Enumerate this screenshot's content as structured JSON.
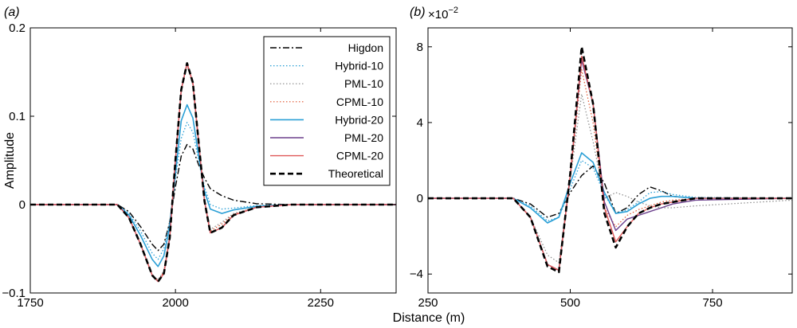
{
  "xlabel": "Distance (m)",
  "chart_data": [
    {
      "type": "line",
      "panel_label": "(a)",
      "ylabel": "Amplitude",
      "xlim": [
        1750,
        2380
      ],
      "ylim": [
        -0.1,
        0.2
      ],
      "xticks": [
        1750,
        2000,
        2250
      ],
      "yticks": [
        -0.1,
        0,
        0.1,
        0.2
      ],
      "ytick_labels": [
        "−0.1",
        "0",
        "0.1",
        "0.2"
      ],
      "grid": false,
      "legend": "top-right",
      "series": [
        {
          "name": "Higdon",
          "color": "#000000",
          "style": "dashdot",
          "width": 1.4,
          "x": [
            1750,
            1900,
            1920,
            1940,
            1960,
            1970,
            1980,
            1990,
            2000,
            2010,
            2020,
            2030,
            2040,
            2050,
            2060,
            2080,
            2100,
            2140,
            2200,
            2380
          ],
          "y": [
            0,
            0,
            -0.008,
            -0.025,
            -0.045,
            -0.052,
            -0.045,
            -0.02,
            0.02,
            0.055,
            0.068,
            0.063,
            0.045,
            0.03,
            0.018,
            0.01,
            0.005,
            0.001,
            0,
            0
          ]
        },
        {
          "name": "Hybrid-10",
          "color": "#2a9fd6",
          "style": "dotted",
          "width": 1.3,
          "x": [
            1750,
            1900,
            1920,
            1940,
            1960,
            1970,
            1980,
            1990,
            2000,
            2010,
            2020,
            2030,
            2040,
            2050,
            2060,
            2080,
            2100,
            2140,
            2200,
            2380
          ],
          "y": [
            0,
            0,
            -0.01,
            -0.03,
            -0.055,
            -0.062,
            -0.05,
            -0.02,
            0.03,
            0.075,
            0.093,
            0.082,
            0.05,
            0.02,
            0,
            -0.005,
            -0.004,
            -0.001,
            0,
            0
          ]
        },
        {
          "name": "PML-10",
          "color": "#8a8a8a",
          "style": "dotted",
          "width": 1.2,
          "x": [
            1750,
            1900,
            1920,
            1940,
            1960,
            1970,
            1980,
            1990,
            2000,
            2010,
            2020,
            2030,
            2040,
            2050,
            2060,
            2080,
            2100,
            2140,
            2200,
            2380
          ],
          "y": [
            0,
            0,
            -0.015,
            -0.045,
            -0.08,
            -0.085,
            -0.075,
            -0.035,
            0.05,
            0.13,
            0.158,
            0.135,
            0.07,
            0.005,
            -0.028,
            -0.02,
            -0.01,
            -0.003,
            0,
            0
          ]
        },
        {
          "name": "CPML-10",
          "color": "#e0542e",
          "style": "dotted",
          "width": 1.2,
          "x": [
            1750,
            1900,
            1920,
            1940,
            1960,
            1970,
            1980,
            1990,
            2000,
            2010,
            2020,
            2030,
            2040,
            2050,
            2060,
            2080,
            2100,
            2140,
            2200,
            2380
          ],
          "y": [
            0,
            0,
            -0.015,
            -0.045,
            -0.08,
            -0.086,
            -0.076,
            -0.036,
            0.05,
            0.13,
            0.159,
            0.136,
            0.07,
            0.004,
            -0.03,
            -0.022,
            -0.011,
            -0.003,
            0,
            0
          ]
        },
        {
          "name": "Hybrid-20",
          "color": "#2a9fd6",
          "style": "solid",
          "width": 1.6,
          "x": [
            1750,
            1900,
            1920,
            1940,
            1960,
            1970,
            1980,
            1990,
            2000,
            2010,
            2020,
            2030,
            2040,
            2050,
            2060,
            2080,
            2100,
            2140,
            2200,
            2380
          ],
          "y": [
            0,
            0,
            -0.012,
            -0.035,
            -0.062,
            -0.07,
            -0.058,
            -0.025,
            0.035,
            0.095,
            0.113,
            0.098,
            0.055,
            0.015,
            -0.005,
            -0.01,
            -0.006,
            -0.002,
            0,
            0
          ]
        },
        {
          "name": "PML-20",
          "color": "#6b3f8c",
          "style": "solid",
          "width": 1.4,
          "x": [
            1750,
            1900,
            1920,
            1940,
            1960,
            1970,
            1980,
            1990,
            2000,
            2010,
            2020,
            2030,
            2040,
            2050,
            2060,
            2080,
            2100,
            2140,
            2200,
            2380
          ],
          "y": [
            0,
            0,
            -0.015,
            -0.045,
            -0.08,
            -0.087,
            -0.078,
            -0.038,
            0.05,
            0.13,
            0.16,
            0.138,
            0.07,
            0.004,
            -0.032,
            -0.026,
            -0.012,
            -0.003,
            0,
            0
          ]
        },
        {
          "name": "CPML-20",
          "color": "#e05858",
          "style": "solid",
          "width": 1.4,
          "x": [
            1750,
            1900,
            1920,
            1940,
            1960,
            1970,
            1980,
            1990,
            2000,
            2010,
            2020,
            2030,
            2040,
            2050,
            2060,
            2080,
            2100,
            2140,
            2200,
            2380
          ],
          "y": [
            0,
            0,
            -0.015,
            -0.045,
            -0.08,
            -0.087,
            -0.078,
            -0.038,
            0.05,
            0.13,
            0.16,
            0.138,
            0.07,
            0.004,
            -0.032,
            -0.026,
            -0.012,
            -0.003,
            0,
            0
          ]
        },
        {
          "name": "Theoretical",
          "color": "#000000",
          "style": "dashed",
          "width": 2.6,
          "x": [
            1750,
            1900,
            1920,
            1940,
            1960,
            1970,
            1980,
            1990,
            2000,
            2010,
            2020,
            2030,
            2040,
            2050,
            2060,
            2080,
            2100,
            2140,
            2200,
            2380
          ],
          "y": [
            0,
            0,
            -0.015,
            -0.045,
            -0.08,
            -0.087,
            -0.078,
            -0.038,
            0.05,
            0.13,
            0.16,
            0.138,
            0.07,
            0.004,
            -0.032,
            -0.026,
            -0.012,
            -0.003,
            0,
            0
          ]
        }
      ]
    },
    {
      "type": "line",
      "panel_label": "(b)",
      "ylabel": "",
      "scale_label": "×10",
      "scale_exponent": "−2",
      "xlim": [
        250,
        890
      ],
      "ylim": [
        -5,
        9
      ],
      "xticks": [
        250,
        500,
        750
      ],
      "yticks": [
        -4,
        0,
        4,
        8
      ],
      "ytick_labels": [
        "−4",
        "0",
        "4",
        "8"
      ],
      "grid": false,
      "series": [
        {
          "name": "Higdon",
          "color": "#000000",
          "style": "dashdot",
          "width": 1.4,
          "x": [
            250,
            400,
            430,
            460,
            480,
            500,
            520,
            540,
            560,
            580,
            600,
            620,
            640,
            660,
            680,
            720,
            890
          ],
          "y": [
            0,
            0,
            -0.3,
            -1,
            -0.8,
            0.3,
            1.2,
            1.7,
            0.8,
            -0.8,
            -0.5,
            0.2,
            0.6,
            0.4,
            0.1,
            0,
            0
          ]
        },
        {
          "name": "Hybrid-10",
          "color": "#2a9fd6",
          "style": "dotted",
          "width": 1.3,
          "x": [
            250,
            400,
            430,
            460,
            480,
            500,
            520,
            540,
            560,
            580,
            600,
            620,
            640,
            660,
            680,
            720,
            890
          ],
          "y": [
            0,
            0,
            -0.4,
            -1.2,
            -1,
            0.5,
            2,
            1.6,
            0.2,
            -0.8,
            -0.6,
            -0.2,
            0.3,
            0.35,
            0.2,
            0.05,
            0
          ]
        },
        {
          "name": "PML-10",
          "color": "#8a8a8a",
          "style": "dotted",
          "width": 1.2,
          "x": [
            250,
            400,
            430,
            460,
            480,
            500,
            520,
            540,
            560,
            580,
            600,
            620,
            640,
            660,
            680,
            720,
            890
          ],
          "y": [
            0,
            0,
            -1,
            -3,
            -3.4,
            1,
            5.5,
            3,
            0,
            0.3,
            0.1,
            -0.2,
            -0.4,
            -0.5,
            -0.5,
            -0.4,
            -0.1
          ]
        },
        {
          "name": "CPML-10",
          "color": "#e0542e",
          "style": "dotted",
          "width": 1.2,
          "x": [
            250,
            400,
            430,
            460,
            480,
            500,
            520,
            540,
            560,
            580,
            600,
            620,
            640,
            660,
            680,
            720,
            890
          ],
          "y": [
            0,
            0,
            -1,
            -3.5,
            -3.8,
            1,
            6.8,
            4,
            -0.5,
            -1.5,
            -0.9,
            -0.6,
            -0.4,
            -0.2,
            -0.1,
            0,
            0
          ]
        },
        {
          "name": "Hybrid-20",
          "color": "#2a9fd6",
          "style": "solid",
          "width": 1.6,
          "x": [
            250,
            400,
            430,
            460,
            480,
            500,
            520,
            540,
            560,
            580,
            600,
            620,
            640,
            660,
            680,
            720,
            890
          ],
          "y": [
            0,
            0,
            -0.5,
            -1.3,
            -1,
            0.8,
            2.4,
            1.9,
            0.3,
            -0.8,
            -0.7,
            -0.3,
            0,
            0.1,
            0.1,
            0,
            0
          ]
        },
        {
          "name": "PML-20",
          "color": "#6b3f8c",
          "style": "solid",
          "width": 1.4,
          "x": [
            250,
            400,
            430,
            460,
            480,
            500,
            520,
            540,
            560,
            580,
            600,
            620,
            640,
            660,
            680,
            720,
            890
          ],
          "y": [
            0,
            0,
            -1,
            -3.5,
            -3.8,
            1.2,
            7.3,
            5,
            -0.2,
            -1.7,
            -1.1,
            -0.9,
            -0.7,
            -0.5,
            -0.3,
            -0.1,
            0
          ]
        },
        {
          "name": "CPML-20",
          "color": "#e05858",
          "style": "solid",
          "width": 1.4,
          "x": [
            250,
            400,
            430,
            460,
            480,
            500,
            520,
            540,
            560,
            580,
            600,
            620,
            640,
            660,
            680,
            720,
            890
          ],
          "y": [
            0,
            0,
            -1,
            -3.5,
            -3.8,
            1.2,
            7.5,
            5,
            -0.5,
            -2.3,
            -1.5,
            -0.8,
            -0.5,
            -0.3,
            -0.2,
            0,
            0
          ]
        },
        {
          "name": "Theoretical",
          "color": "#000000",
          "style": "dashed",
          "width": 2.6,
          "x": [
            250,
            400,
            430,
            460,
            480,
            500,
            520,
            540,
            560,
            580,
            600,
            620,
            640,
            660,
            680,
            720,
            890
          ],
          "y": [
            0,
            0,
            -1,
            -3.6,
            -3.9,
            1.3,
            8,
            5,
            -0.8,
            -2.6,
            -1.5,
            -0.8,
            -0.5,
            -0.3,
            -0.2,
            0,
            0
          ]
        }
      ]
    }
  ]
}
